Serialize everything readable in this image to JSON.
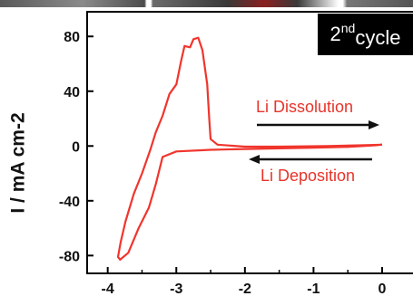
{
  "badge": {
    "main": "2",
    "sup": "nd",
    "sub": "cycle"
  },
  "annotations": {
    "dissolution": "Li Dissolution",
    "deposition": "Li Deposition"
  },
  "colors": {
    "curve": "#f0352d",
    "annotation_text": "#e8342a",
    "arrows": "#111111",
    "axis": "#000000"
  },
  "chart_data": {
    "type": "line",
    "title": "",
    "xlabel": "",
    "ylabel": "I / mA cm-2",
    "xlim": [
      -4.3,
      0.45
    ],
    "ylim": [
      -93,
      98
    ],
    "x_ticks": [
      -4,
      -3,
      -2,
      -1,
      0
    ],
    "y_ticks": [
      80,
      40,
      0,
      -40,
      -80
    ],
    "x_tick_labels": [
      "-4",
      "-3",
      "-2",
      "-1",
      "0"
    ],
    "y_tick_labels": [
      "80",
      "40",
      "0",
      "-40",
      "-80"
    ],
    "grid": false,
    "series": [
      {
        "color": "#f0352d",
        "x": [
          0.0,
          -0.3,
          -0.8,
          -1.5,
          -2.0,
          -2.4,
          -2.5,
          -2.52,
          -2.55,
          -2.62,
          -2.68,
          -2.75,
          -2.8,
          -2.88,
          -2.93,
          -3.0,
          -3.1,
          -3.2,
          -3.3,
          -3.38,
          -3.5,
          -3.62,
          -3.74,
          -3.81,
          -3.85,
          -3.82,
          -3.7,
          -3.55,
          -3.4,
          -3.3,
          -3.2,
          -3.0,
          -2.5,
          -2.0,
          -1.5,
          -1.0,
          -0.5,
          -0.1,
          0.0
        ],
        "y": [
          1,
          0.5,
          0,
          -0.5,
          -0.5,
          1,
          5,
          20,
          45,
          70,
          79,
          78,
          72,
          73,
          62,
          45,
          38,
          22,
          10,
          -3,
          -20,
          -35,
          -55,
          -70,
          -81,
          -83,
          -78,
          -60,
          -45,
          -28,
          -8,
          -4,
          -2.8,
          -2.2,
          -1.7,
          -1.2,
          -0.7,
          0.5,
          1
        ]
      }
    ]
  }
}
